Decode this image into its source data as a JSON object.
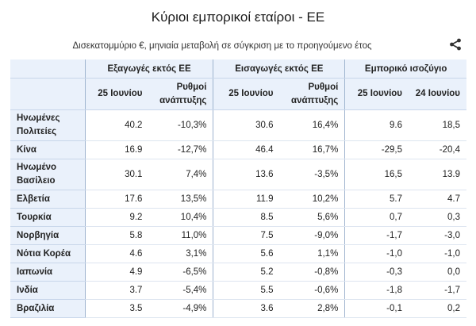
{
  "title": "Κύριοι εμπορικοί εταίροι - ΕΕ",
  "subtitle": "Δισεκατομμύριο €, μηνιαία μεταβολή σε σύγκριση με το προηγούμενο έτος",
  "share_icon": "share-icon",
  "chart_data": {
    "type": "table",
    "group_headers": [
      "Εξαγωγές εκτός ΕΕ",
      "Εισαγωγές εκτός ΕΕ",
      "Εμπορικό ισοζύγιο"
    ],
    "column_headers": [
      "25 Ιουνίου",
      "Ρυθμοί ανάπτυξης",
      "25 Ιουνίου",
      "Ρυθμοί ανάπτυξης",
      "25 Ιουνίου",
      "24 Ιουνίου"
    ],
    "rows": [
      {
        "label": "Ηνωμένες Πολιτείες",
        "values": [
          "40.2",
          "-10,3%",
          "30.6",
          "16,4%",
          "9.6",
          "18,5"
        ]
      },
      {
        "label": "Κίνα",
        "values": [
          "16.9",
          "-12,7%",
          "46.4",
          "16,7%",
          "-29,5",
          "-20,4"
        ]
      },
      {
        "label": "Ηνωμένο Βασίλειο",
        "values": [
          "30.1",
          "7,4%",
          "13.6",
          "-3,5%",
          "16,5",
          "13.9"
        ]
      },
      {
        "label": "Ελβετία",
        "values": [
          "17.6",
          "13,5%",
          "11.9",
          "10,2%",
          "5.7",
          "4.7"
        ]
      },
      {
        "label": "Τουρκία",
        "values": [
          "9.2",
          "10,4%",
          "8.5",
          "5,6%",
          "0,7",
          "0,3"
        ]
      },
      {
        "label": "Νορβηγία",
        "values": [
          "5.8",
          "11,0%",
          "7.5",
          "-9,0%",
          "-1,7",
          "-3,0"
        ]
      },
      {
        "label": "Νότια Κορέα",
        "values": [
          "4.6",
          "3,1%",
          "5.6",
          "1,1%",
          "-1,0",
          "-1,0"
        ]
      },
      {
        "label": "Ιαπωνία",
        "values": [
          "4.9",
          "-6,5%",
          "5.2",
          "-0,8%",
          "-0,3",
          "0,0"
        ]
      },
      {
        "label": "Ινδία",
        "values": [
          "3.7",
          "-5,4%",
          "5.5",
          "-0,6%",
          "-1,8",
          "-1,7"
        ]
      },
      {
        "label": "Βραζιλία",
        "values": [
          "3.5",
          "-4,9%",
          "3.6",
          "2,8%",
          "-0,1",
          "0,2"
        ]
      }
    ]
  }
}
